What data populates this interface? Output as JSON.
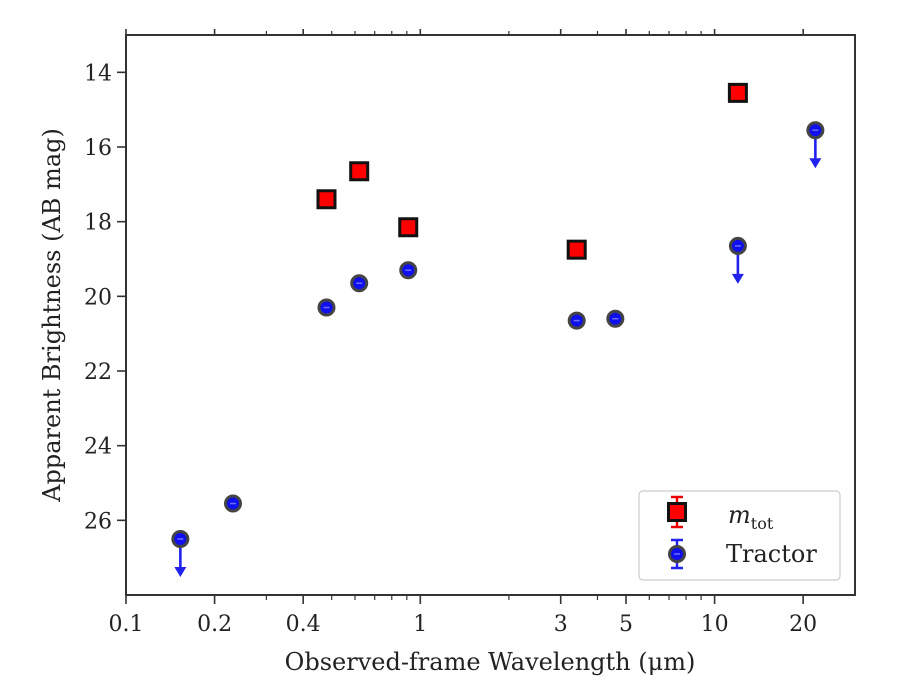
{
  "chart_data": {
    "type": "scatter",
    "xlabel": "Observed-frame Wavelength (μm)",
    "ylabel": "Apparent Brightness (AB mag)",
    "xscale": "log",
    "xlim": [
      0.1,
      30
    ],
    "ylim": [
      28,
      13
    ],
    "y_inverted": true,
    "x_ticks": [
      0.1,
      0.2,
      0.4,
      1,
      3,
      5,
      10,
      20
    ],
    "x_tick_labels": [
      "0.1",
      "0.2",
      "0.4",
      "1",
      "3",
      "5",
      "10",
      "20"
    ],
    "y_ticks": [
      14,
      16,
      18,
      20,
      22,
      24,
      26
    ],
    "y_tick_labels": [
      "14",
      "16",
      "18",
      "20",
      "22",
      "24",
      "26"
    ],
    "legend_position": "lower-right",
    "series": [
      {
        "name": "m_tot",
        "legend_base": "m",
        "legend_sub": "tot",
        "marker": "square",
        "color": "#ff0000",
        "edge_color": "#111111",
        "points": [
          {
            "x": 0.48,
            "y": 17.4
          },
          {
            "x": 0.62,
            "y": 16.65
          },
          {
            "x": 0.91,
            "y": 18.15
          },
          {
            "x": 3.4,
            "y": 18.75
          },
          {
            "x": 12.0,
            "y": 14.55
          }
        ]
      },
      {
        "name": "Tractor",
        "marker": "circle",
        "color": "#1010ee",
        "edge_color": "#444444",
        "points": [
          {
            "x": 0.153,
            "y": 26.5,
            "upper_limit": true
          },
          {
            "x": 0.231,
            "y": 25.55
          },
          {
            "x": 0.48,
            "y": 20.3
          },
          {
            "x": 0.62,
            "y": 19.65
          },
          {
            "x": 0.91,
            "y": 19.3
          },
          {
            "x": 3.4,
            "y": 20.65
          },
          {
            "x": 4.6,
            "y": 20.6
          },
          {
            "x": 12.0,
            "y": 18.65,
            "upper_limit": true
          },
          {
            "x": 22.0,
            "y": 15.55,
            "upper_limit": true
          }
        ]
      }
    ]
  }
}
